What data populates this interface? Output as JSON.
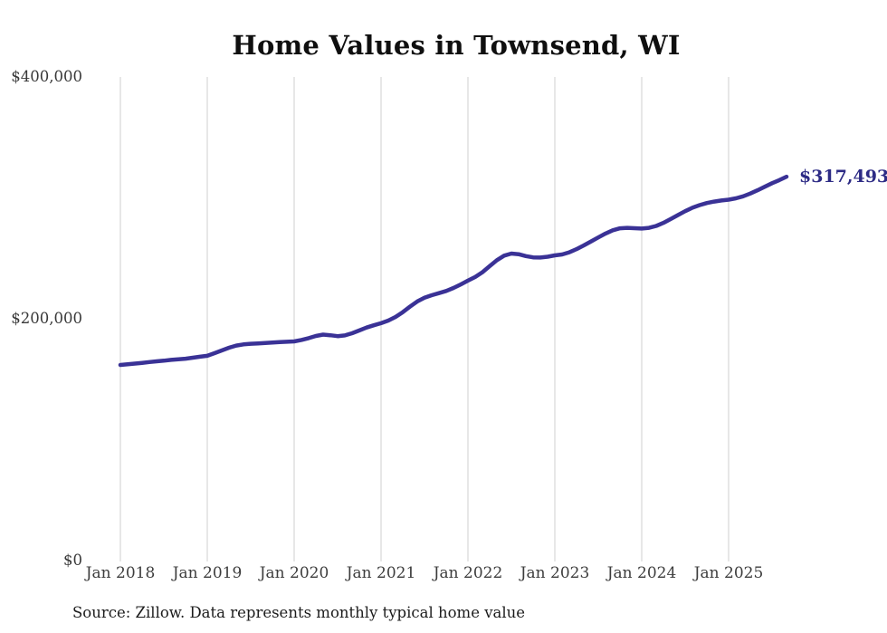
{
  "source_note": "Source: Zillow. Data represents monthly typical home value",
  "colors": {
    "line": "#3a3296",
    "end_label": "#2d2b85",
    "gridline": "#cfcfcf",
    "title_text": "#0f0f0f",
    "x_tick_text": "#3d3d3d",
    "y_tick_text": "#383838",
    "source_text": "#1c1c1c",
    "background": "#ffffff"
  },
  "chart_data": {
    "type": "line",
    "title": "Home Values in Townsend, WI",
    "xlabel": "",
    "ylabel": "",
    "start_month": "Jan 2018",
    "frequency": "monthly",
    "end_label": "$317,493",
    "final_value": 317493,
    "ylim": [
      0,
      400000
    ],
    "grid": "vertical-only",
    "legend": "none",
    "x_tick_labels": [
      "Jan 2018",
      "Jan 2019",
      "Jan 2020",
      "Jan 2021",
      "Jan 2022",
      "Jan 2023",
      "Jan 2024",
      "Jan 2025"
    ],
    "y_ticks": [
      {
        "label": "$0",
        "value": 0
      },
      {
        "label": "$200,000",
        "value": 200000
      },
      {
        "label": "$400,000",
        "value": 400000
      }
    ],
    "values": [
      161800,
      162300,
      162900,
      163500,
      164200,
      164800,
      165300,
      166000,
      166500,
      167000,
      167800,
      168600,
      169400,
      171500,
      173800,
      176000,
      177800,
      178800,
      179300,
      179600,
      179900,
      180300,
      180700,
      181000,
      181300,
      182500,
      184000,
      185800,
      186900,
      186400,
      185600,
      186200,
      188000,
      190300,
      192700,
      194600,
      196300,
      198500,
      201500,
      205500,
      210000,
      214300,
      217400,
      219500,
      221200,
      223000,
      225500,
      228400,
      231500,
      234500,
      238500,
      243500,
      248500,
      252200,
      253900,
      253400,
      251800,
      250800,
      250600,
      251300,
      252400,
      253200,
      255000,
      257600,
      260700,
      264000,
      267300,
      270500,
      273200,
      274800,
      275200,
      274900,
      274600,
      275200,
      276800,
      279300,
      282500,
      285800,
      289000,
      291800,
      294000,
      295700,
      296900,
      297800,
      298500,
      299600,
      301300,
      303600,
      306300,
      309200,
      312100,
      314700,
      317493
    ]
  }
}
